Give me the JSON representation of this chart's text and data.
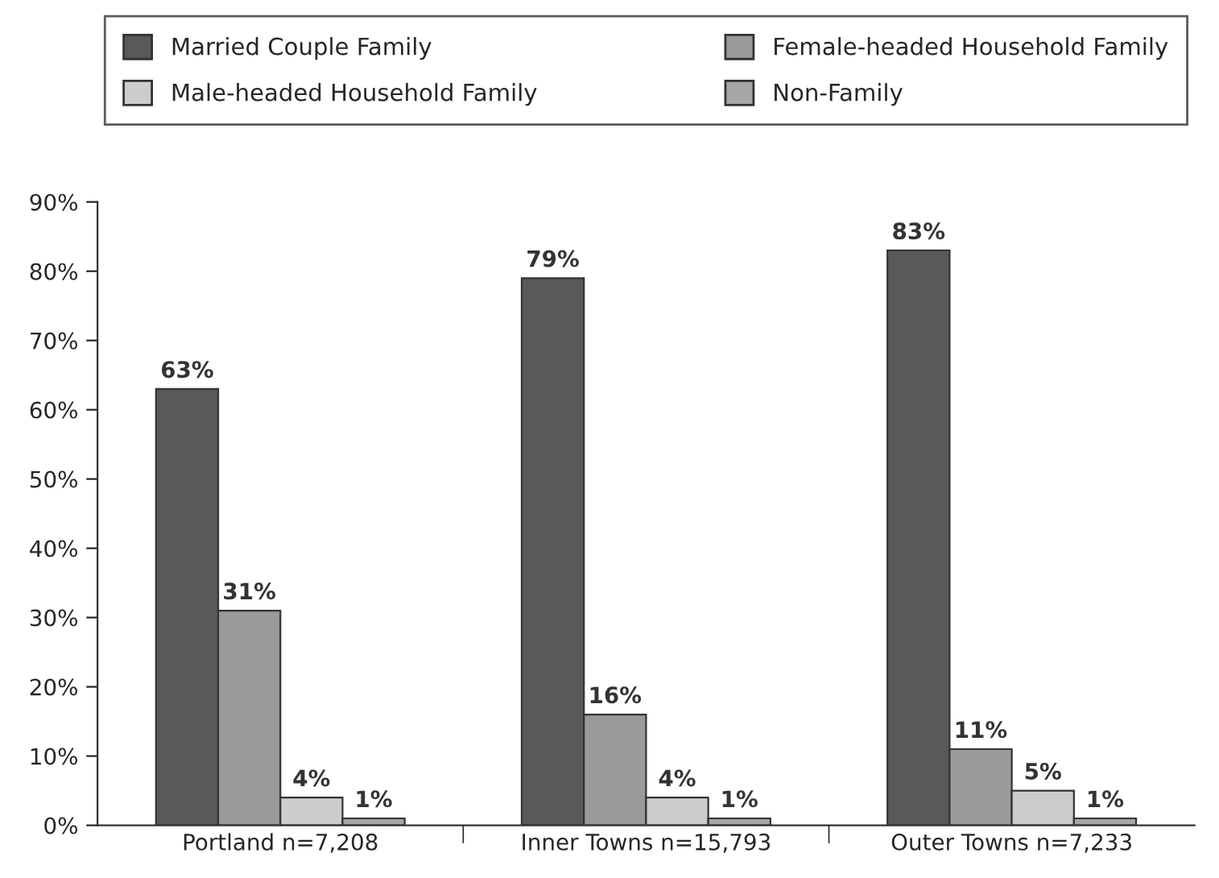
{
  "chart_data": {
    "type": "bar",
    "categories": [
      "Portland n=7,208",
      "Inner Towns n=15,793",
      "Outer Towns n=7,233"
    ],
    "series": [
      {
        "name": "Married Couple Family",
        "color": "#595959",
        "values": [
          63,
          79,
          83
        ],
        "value_labels": [
          "63%",
          "79%",
          "83%"
        ]
      },
      {
        "name": "Female-headed Household Family",
        "color": "#9a9a9a",
        "values": [
          31,
          16,
          11
        ],
        "value_labels": [
          "31%",
          "16%",
          "11%"
        ]
      },
      {
        "name": "Male-headed Household Family",
        "color": "#cccccc",
        "values": [
          4,
          4,
          5
        ],
        "value_labels": [
          "4%",
          "4%",
          "5%"
        ]
      },
      {
        "name": "Non-Family",
        "color": "#a6a6a6",
        "values": [
          1,
          1,
          1
        ],
        "value_labels": [
          "1%",
          "1%",
          "1%"
        ]
      }
    ],
    "ylim": [
      0,
      90
    ],
    "yticks": [
      {
        "value": 0,
        "label": "0%"
      },
      {
        "value": 10,
        "label": "10%"
      },
      {
        "value": 20,
        "label": "20%"
      },
      {
        "value": 30,
        "label": "30%"
      },
      {
        "value": 40,
        "label": "40%"
      },
      {
        "value": 50,
        "label": "50%"
      },
      {
        "value": 60,
        "label": "60%"
      },
      {
        "value": 70,
        "label": "70%"
      },
      {
        "value": 80,
        "label": "80%"
      },
      {
        "value": 90,
        "label": "90%"
      }
    ],
    "grid": false,
    "legend": "top"
  }
}
